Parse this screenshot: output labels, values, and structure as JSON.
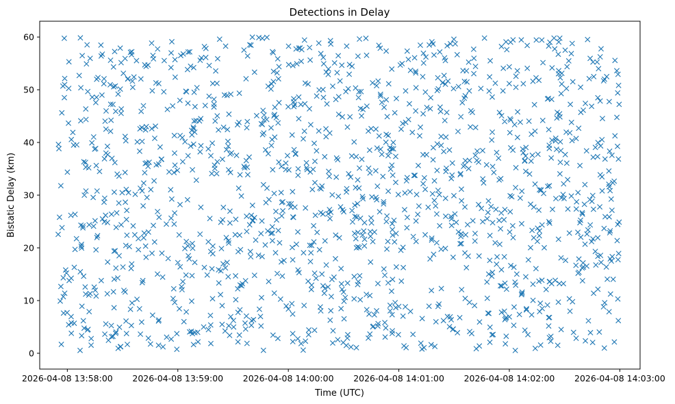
{
  "chart_data": {
    "type": "scatter",
    "title": "Detections in Delay",
    "xlabel": "Time (UTC)",
    "ylabel": "Bistatic Delay (km)",
    "marker": "x",
    "color": "#1f77b4",
    "grid": false,
    "legend": "none",
    "xlim": [
      "2026-04-08 13:57:45",
      "2026-04-08 14:03:11"
    ],
    "ylim": [
      -3,
      63
    ],
    "xticks": [
      "2026-04-08 13:58:00",
      "2026-04-08 13:59:00",
      "2026-04-08 14:00:00",
      "2026-04-08 14:01:00",
      "2026-04-08 14:02:00",
      "2026-04-08 14:03:00"
    ],
    "yticks": [
      "0",
      "10",
      "20",
      "30",
      "40",
      "50",
      "60"
    ],
    "yvalues": [
      0,
      10,
      20,
      30,
      40,
      50,
      60
    ],
    "series": [
      {
        "t_start": "2026-04-08 13:57:55",
        "t_end": "2026-04-08 14:03:00",
        "delay_min_km": 0.5,
        "delay_max_km": 60,
        "point_count": 1500
      }
    ]
  }
}
